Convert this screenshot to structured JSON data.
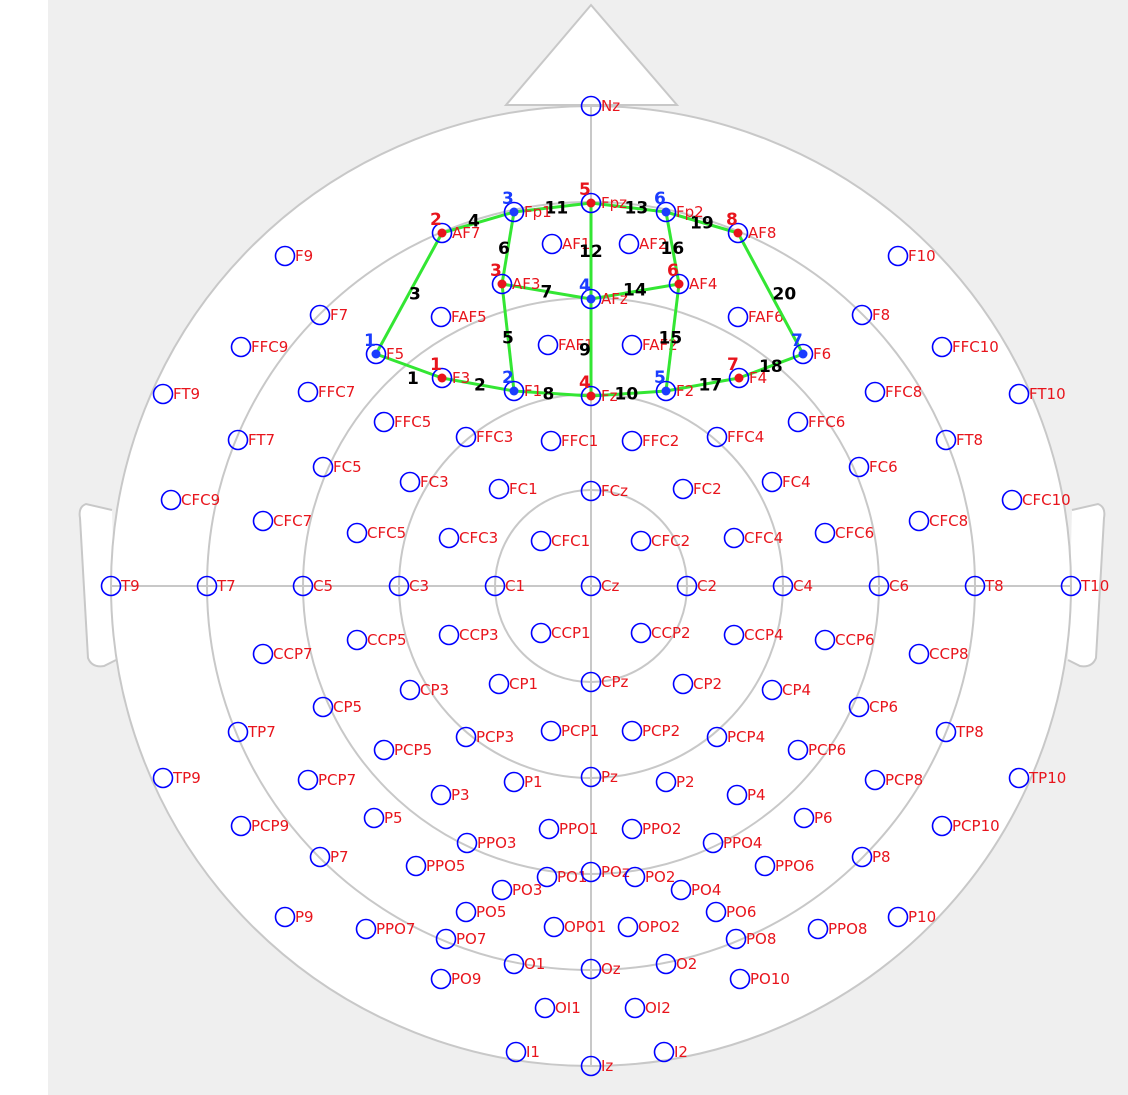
{
  "colors": {
    "background": "#efefef",
    "head_fill": "#ffffff",
    "head_line": "#c8c8c8",
    "electrode_ring": "#0000ff",
    "electrode_label": "#e8141c",
    "channel_line": "#33e633",
    "channel_number": "#000000",
    "source_blue": "#1a3cff",
    "source_red": "#e8141c"
  },
  "electrodes": [
    "Nz",
    "F9",
    "F10",
    "F7",
    "F8",
    "FFC9",
    "FFC10",
    "FT9",
    "FT10",
    "FFC7",
    "FFC8",
    "FFC5",
    "FFC3",
    "FFC1",
    "FFC2",
    "FFC4",
    "FFC6",
    "FT7",
    "FT8",
    "FC5",
    "FC3",
    "FC1",
    "FCz",
    "FC2",
    "FC4",
    "FC6",
    "CFC9",
    "CFC7",
    "CFC5",
    "CFC3",
    "CFC1",
    "CFC2",
    "CFC4",
    "CFC6",
    "CFC8",
    "CFC10",
    "T9",
    "T7",
    "C5",
    "C3",
    "C1",
    "Cz",
    "C2",
    "C4",
    "C6",
    "T8",
    "T10",
    "CCP7",
    "CCP5",
    "CCP3",
    "CCP1",
    "CCP2",
    "CCP4",
    "CCP6",
    "CCP8",
    "CP5",
    "CP3",
    "CP1",
    "CPz",
    "CP2",
    "CP4",
    "CP6",
    "TP7",
    "TP8",
    "PCP5",
    "PCP3",
    "PCP1",
    "PCP2",
    "PCP4",
    "PCP6",
    "TP9",
    "PCP7",
    "P3",
    "P1",
    "Pz",
    "P2",
    "P4",
    "PCP8",
    "TP10",
    "PCP9",
    "P5",
    "P6",
    "PCP10",
    "P7",
    "P8",
    "PPO3",
    "PPO1",
    "PPO2",
    "PPO4",
    "PPO5",
    "PPO6",
    "PO1",
    "POz",
    "PO2",
    "PO3",
    "PO4",
    "P9",
    "PPO7",
    "PO5",
    "PO7",
    "OPO1",
    "OPO2",
    "PO6",
    "PO8",
    "PPO8",
    "P10",
    "O1",
    "Oz",
    "O2",
    "PO9",
    "PO10",
    "OI1",
    "OI2",
    "I1",
    "Iz",
    "I2",
    "AF1",
    "AF2",
    "FAF5",
    "FAF6",
    "FAF1",
    "FAF2"
  ],
  "sources": [
    {
      "label": "F5",
      "group": "blue",
      "num": "1"
    },
    {
      "label": "F1",
      "group": "blue",
      "num": "2"
    },
    {
      "label": "Fp1",
      "group": "blue",
      "num": "3"
    },
    {
      "label": "AFz",
      "group": "blue",
      "num": "4"
    },
    {
      "label": "F2",
      "group": "blue",
      "num": "5"
    },
    {
      "label": "Fp2",
      "group": "blue",
      "num": "6"
    },
    {
      "label": "F6",
      "group": "blue",
      "num": "7"
    },
    {
      "label": "F3",
      "group": "red",
      "num": "1"
    },
    {
      "label": "AF7",
      "group": "red",
      "num": "2"
    },
    {
      "label": "AF3",
      "group": "red",
      "num": "3"
    },
    {
      "label": "Fz",
      "group": "red",
      "num": "4"
    },
    {
      "label": "Fpz",
      "group": "red",
      "num": "5"
    },
    {
      "label": "AF4",
      "group": "red",
      "num": "6"
    },
    {
      "label": "F4",
      "group": "red",
      "num": "7"
    },
    {
      "label": "AF8",
      "group": "red",
      "num": "8"
    }
  ],
  "channels": [
    {
      "num": "1",
      "from": "F5",
      "to": "F3"
    },
    {
      "num": "2",
      "from": "F3",
      "to": "F1"
    },
    {
      "num": "3",
      "from": "F5",
      "to": "AF7"
    },
    {
      "num": "4",
      "from": "AF7",
      "to": "Fp1"
    },
    {
      "num": "5",
      "from": "F1",
      "to": "AF3"
    },
    {
      "num": "6",
      "from": "AF3",
      "to": "Fp1"
    },
    {
      "num": "7",
      "from": "AF3",
      "to": "AFz"
    },
    {
      "num": "8",
      "from": "F1",
      "to": "Fz"
    },
    {
      "num": "9",
      "from": "Fz",
      "to": "AFz"
    },
    {
      "num": "10",
      "from": "Fz",
      "to": "F2"
    },
    {
      "num": "11",
      "from": "Fp1",
      "to": "Fpz"
    },
    {
      "num": "12",
      "from": "AFz",
      "to": "Fpz"
    },
    {
      "num": "13",
      "from": "Fpz",
      "to": "Fp2"
    },
    {
      "num": "14",
      "from": "AFz",
      "to": "AF4"
    },
    {
      "num": "15",
      "from": "F2",
      "to": "AF4"
    },
    {
      "num": "16",
      "from": "AF4",
      "to": "Fp2"
    },
    {
      "num": "17",
      "from": "F2",
      "to": "F4"
    },
    {
      "num": "18",
      "from": "F4",
      "to": "F6"
    },
    {
      "num": "19",
      "from": "Fp2",
      "to": "AF8"
    },
    {
      "num": "20",
      "from": "AF8",
      "to": "F6"
    }
  ]
}
